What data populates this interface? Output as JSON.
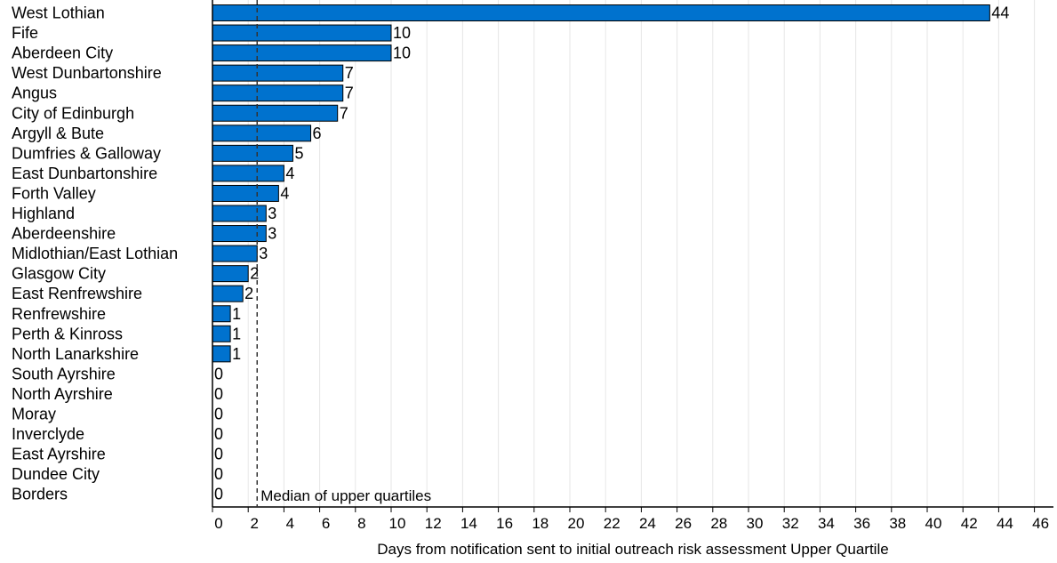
{
  "chart_data": {
    "type": "bar",
    "orientation": "horizontal",
    "categories": [
      "West Lothian",
      "Fife",
      "Aberdeen City",
      "West Dunbartonshire",
      "Angus",
      "City of Edinburgh",
      "Argyll & Bute",
      "Dumfries & Galloway",
      "East Dunbartonshire",
      "Forth Valley",
      "Highland",
      "Aberdeenshire",
      "Midlothian/East Lothian",
      "Glasgow City",
      "East Renfrewshire",
      "Renfrewshire",
      "Perth & Kinross",
      "North Lanarkshire",
      "South Ayrshire",
      "North Ayrshire",
      "Moray",
      "Inverclyde",
      "East Ayrshire",
      "Dundee City",
      "Borders"
    ],
    "values": [
      43.5,
      10,
      10,
      7.3,
      7.3,
      7,
      5.5,
      4.5,
      4,
      3.7,
      3,
      3,
      2.5,
      2,
      1.7,
      1,
      1,
      1,
      0,
      0,
      0,
      0,
      0,
      0,
      0
    ],
    "data_labels": [
      "44",
      "10",
      "10",
      "7",
      "7",
      "7",
      "6",
      "5",
      "4",
      "4",
      "3",
      "3",
      "3",
      "2",
      "2",
      "1",
      "1",
      "1",
      "0",
      "0",
      "0",
      "0",
      "0",
      "0",
      "0"
    ],
    "xlabel": "Days from notification sent to initial outreach risk assessment Upper Quartile",
    "xlim": [
      0,
      47
    ],
    "xticks": [
      "0",
      "2",
      "4",
      "6",
      "8",
      "10",
      "12",
      "14",
      "16",
      "18",
      "20",
      "22",
      "24",
      "26",
      "28",
      "30",
      "32",
      "34",
      "36",
      "38",
      "40",
      "42",
      "44",
      "46"
    ],
    "reference_line": {
      "value": 2.5,
      "style": "dashed",
      "label": "Median of upper quartiles"
    },
    "grid": "vertical",
    "colors": {
      "bar": "#0072CE",
      "bar_edge": "#000000",
      "grid": "#E6E6E6",
      "axis": "#000000"
    }
  }
}
